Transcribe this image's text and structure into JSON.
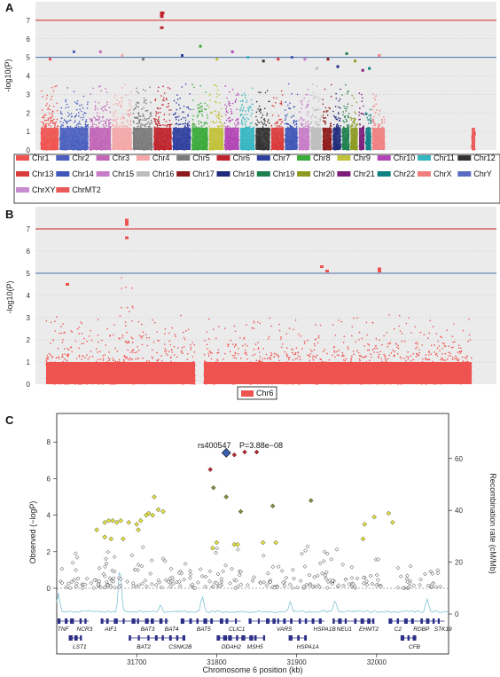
{
  "panels": {
    "A": {
      "label": "A",
      "ylabel": "-log10(P)",
      "yticks": [
        0,
        1,
        2,
        3,
        4,
        5,
        6,
        7
      ]
    },
    "B": {
      "label": "B",
      "ylabel": "-log10(P)",
      "yticks": [
        0,
        1,
        2,
        3,
        4,
        5,
        6,
        7
      ]
    },
    "C": {
      "label": "C",
      "ylabel_left": "Observed (−logP)",
      "ylabel_right": "Recombination rate (cM/Mb)",
      "xlabel": "Chromosome 6 position (kb)",
      "yticks_left": [
        0,
        2,
        4,
        6,
        8
      ],
      "yticks_right": [
        0,
        20,
        40,
        60
      ],
      "xticks": [
        31700,
        31800,
        31900,
        32000
      ],
      "snp_label": "rs400547",
      "p_label": "P=3.88e−08"
    }
  },
  "colors": {
    "genome_wide_line": "#d62728",
    "suggestive_line": "#4a6ea8",
    "panel_bg": "#ebebeb",
    "recomb_line": "#7fc3d6",
    "gene_track": "#2b2f86",
    "lead_snp": "#3a5dae"
  },
  "chart_data": [
    {
      "type": "scatter",
      "subtype": "manhattan",
      "ylim": [
        0,
        8
      ],
      "thresholds": [
        7,
        5
      ],
      "series": [
        {
          "name": "Chr1",
          "color": "#ef5350",
          "max": 4.9
        },
        {
          "name": "Chr2",
          "color": "#4a5fbf",
          "max": 5.3
        },
        {
          "name": "Chr3",
          "color": "#c266b8",
          "max": 5.3
        },
        {
          "name": "Chr4",
          "color": "#f4a7a7",
          "max": 5.1
        },
        {
          "name": "Chr5",
          "color": "#7a7a7a",
          "max": 4.9
        },
        {
          "name": "Chr6",
          "color": "#c0232b",
          "max": 7.4
        },
        {
          "name": "Chr7",
          "color": "#2f3f9e",
          "max": 5.1
        },
        {
          "name": "Chr8",
          "color": "#3aaa3a",
          "max": 5.6
        },
        {
          "name": "Chr9",
          "color": "#c2c23a",
          "max": 4.9
        },
        {
          "name": "Chr10",
          "color": "#b145b5",
          "max": 5.3
        },
        {
          "name": "Chr11",
          "color": "#35b6c2",
          "max": 5.0
        },
        {
          "name": "Chr12",
          "color": "#333333",
          "max": 4.8
        },
        {
          "name": "Chr13",
          "color": "#d93a3a",
          "max": 4.9
        },
        {
          "name": "Chr14",
          "color": "#3f57b8",
          "max": 5.0
        },
        {
          "name": "Chr15",
          "color": "#c77bc8",
          "max": 4.9
        },
        {
          "name": "Chr16",
          "color": "#bdbdbd",
          "max": 4.4
        },
        {
          "name": "Chr17",
          "color": "#8e1b1b",
          "max": 4.9
        },
        {
          "name": "Chr18",
          "color": "#1f2a7a",
          "max": 4.5
        },
        {
          "name": "Chr19",
          "color": "#1e7f4f",
          "max": 5.2
        },
        {
          "name": "Chr20",
          "color": "#8c9a1f",
          "max": 4.8
        },
        {
          "name": "Chr21",
          "color": "#7b1f7b",
          "max": 4.3
        },
        {
          "name": "Chr22",
          "color": "#0e7f83",
          "max": 4.4
        },
        {
          "name": "ChrX",
          "color": "#f08080",
          "max": 5.1
        },
        {
          "name": "ChrY",
          "color": "#5a6cc0",
          "max": 0
        },
        {
          "name": "ChrXY",
          "color": "#c88ad0",
          "max": 0
        },
        {
          "name": "ChrMT2",
          "color": "#ea5a5a",
          "max": 0.9
        }
      ]
    },
    {
      "type": "scatter",
      "subtype": "manhattan",
      "ylim": [
        0,
        8
      ],
      "thresholds": [
        7,
        5
      ],
      "series": [
        {
          "name": "Chr6",
          "color": "#ef5350"
        }
      ]
    },
    {
      "type": "scatter",
      "subtype": "regional-association",
      "xlim": [
        31600,
        32090
      ],
      "ylim": [
        -2,
        9
      ],
      "y2lim": [
        -5,
        70
      ],
      "lead_snp": {
        "x": 31812,
        "y": 7.41
      },
      "genes": [
        {
          "name": "TNF",
          "x": 31601,
          "row": 0
        },
        {
          "name": "NCR3",
          "x": 31625,
          "row": 0
        },
        {
          "name": "LST1",
          "x": 31620,
          "row": 1
        },
        {
          "name": "AIF1",
          "x": 31660,
          "row": 0
        },
        {
          "name": "BAT2",
          "x": 31700,
          "row": 1
        },
        {
          "name": "BAT3",
          "x": 31705,
          "row": 0
        },
        {
          "name": "BAT4",
          "x": 31735,
          "row": 0
        },
        {
          "name": "CSNK2B",
          "x": 31740,
          "row": 1
        },
        {
          "name": "BAT5",
          "x": 31775,
          "row": 0
        },
        {
          "name": "CLIC1",
          "x": 31815,
          "row": 0
        },
        {
          "name": "DDAH2",
          "x": 31806,
          "row": 1
        },
        {
          "name": "MSH5",
          "x": 31838,
          "row": 1
        },
        {
          "name": "VARS",
          "x": 31875,
          "row": 0
        },
        {
          "name": "HSPA1A",
          "x": 31900,
          "row": 1
        },
        {
          "name": "HSPA1B",
          "x": 31921,
          "row": 0
        },
        {
          "name": "NEU1",
          "x": 31950,
          "row": 0
        },
        {
          "name": "EHMT2",
          "x": 31978,
          "row": 0
        },
        {
          "name": "C2",
          "x": 32022,
          "row": 0
        },
        {
          "name": "CFB",
          "x": 32040,
          "row": 1
        },
        {
          "name": "RDBP",
          "x": 32046,
          "row": 0
        },
        {
          "name": "STK19",
          "x": 32072,
          "row": 0
        }
      ]
    }
  ]
}
